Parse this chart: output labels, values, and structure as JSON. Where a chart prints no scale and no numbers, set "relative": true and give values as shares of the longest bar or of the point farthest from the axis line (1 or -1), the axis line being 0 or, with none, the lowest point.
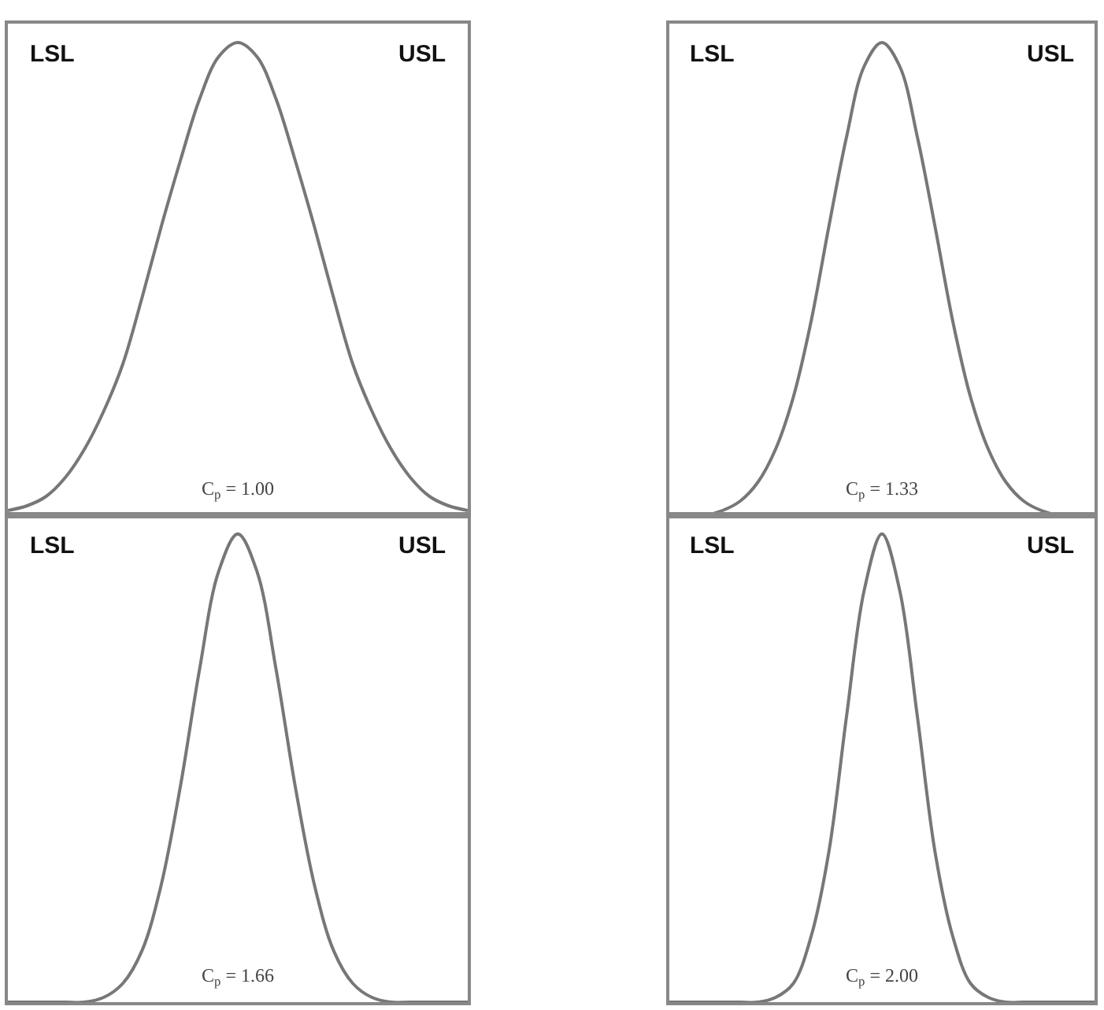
{
  "chart_data": [
    {
      "type": "line",
      "relative": true,
      "categories": [
        null,
        null,
        null,
        null,
        null,
        null,
        null,
        null,
        null,
        null,
        null,
        null,
        null,
        null,
        null,
        null,
        null,
        null,
        null,
        null,
        null,
        null,
        null,
        null,
        null
      ],
      "series": [
        {
          "color": "#777777",
          "values": [
            0.01,
            0.02,
            0.04,
            0.08,
            0.14,
            0.22,
            0.32,
            0.46,
            0.61,
            0.75,
            0.88,
            0.97,
            1,
            0.97,
            0.88,
            0.75,
            0.61,
            0.46,
            0.32,
            0.22,
            0.14,
            0.08,
            0.04,
            0.02,
            0.01
          ]
        }
      ],
      "annotations": [
        "LSL",
        "USL",
        "C$_{p}$ = 1.00"
      ],
      "legend": false,
      "marker": "none",
      "line_style": "solid"
    },
    {
      "type": "line",
      "relative": true,
      "categories": [
        null,
        null,
        null,
        null,
        null,
        null,
        null,
        null,
        null,
        null,
        null,
        null,
        null,
        null,
        null,
        null,
        null,
        null,
        null,
        null,
        null,
        null,
        null,
        null,
        null
      ],
      "series": [
        {
          "color": "#777777",
          "values": [
            0,
            0,
            0,
            0.01,
            0.03,
            0.07,
            0.14,
            0.25,
            0.41,
            0.61,
            0.8,
            0.95,
            1,
            0.95,
            0.8,
            0.61,
            0.41,
            0.25,
            0.14,
            0.07,
            0.03,
            0.01,
            0,
            0,
            0
          ]
        }
      ],
      "annotations": [
        "LSL",
        "USL",
        "C$_{p}$ = 1.33"
      ],
      "legend": false,
      "marker": "none",
      "line_style": "solid"
    },
    {
      "type": "line",
      "relative": true,
      "categories": [
        null,
        null,
        null,
        null,
        null,
        null,
        null,
        null,
        null,
        null,
        null,
        null,
        null,
        null,
        null,
        null,
        null,
        null,
        null,
        null,
        null,
        null,
        null,
        null,
        null
      ],
      "series": [
        {
          "color": "#777777",
          "values": [
            0,
            0,
            0,
            0,
            0,
            0.01,
            0.04,
            0.11,
            0.25,
            0.46,
            0.71,
            0.92,
            1,
            0.92,
            0.71,
            0.46,
            0.25,
            0.11,
            0.04,
            0.01,
            0,
            0,
            0,
            0,
            0
          ]
        }
      ],
      "annotations": [
        "LSL",
        "USL",
        "C$_{p}$ = 1.66"
      ],
      "legend": false,
      "marker": "none",
      "line_style": "solid"
    },
    {
      "type": "line",
      "relative": true,
      "categories": [
        null,
        null,
        null,
        null,
        null,
        null,
        null,
        null,
        null,
        null,
        null,
        null,
        null,
        null,
        null,
        null,
        null,
        null,
        null,
        null,
        null,
        null,
        null,
        null,
        null
      ],
      "series": [
        {
          "color": "#777777",
          "values": [
            0,
            0,
            0,
            0,
            0,
            0,
            0.01,
            0.04,
            0.14,
            0.32,
            0.61,
            0.88,
            1,
            0.88,
            0.61,
            0.32,
            0.14,
            0.04,
            0.01,
            0,
            0,
            0,
            0,
            0,
            0
          ]
        }
      ],
      "annotations": [
        "LSL",
        "USL",
        "C$_{p}$ = 2.00"
      ],
      "legend": false,
      "marker": "none",
      "line_style": "solid"
    }
  ]
}
